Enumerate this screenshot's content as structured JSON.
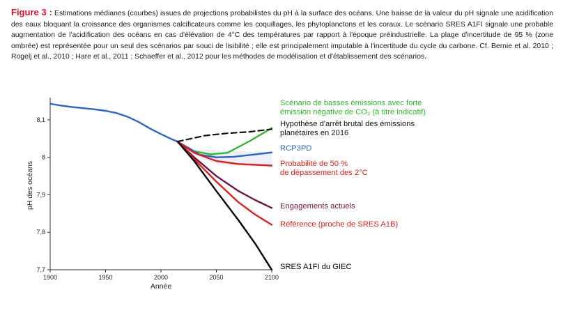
{
  "caption": {
    "label": "Figure 3 :",
    "text": "Estimations médianes (courbes) issues de projections probabilistes du pH à la surface des océans. Une baisse de la valeur du pH signale une acidification des eaux bloquant la croissance des organismes calcificateurs comme les coquillages, les phytoplanctons et les coraux. Le scénario SRES A1FI signale une probable augmentation de l'acidification des océans en cas d'élévation de 4°C des températures par rapport à l'époque préindustrielle. La plage d'incertitude de 95 % (zone ombrée) est représentée pour un seul des scénarios par souci de lisibilité ; elle est principalement imputable à l'incertitude du cycle du carbone. Cf. Bernie et al. 2010 ; Rogelj et al., 2010 ; Hare et al., 2011 ; Schaeffer et al., 2012 pour les méthodes de modélisation et d'établissement des scénarios."
  },
  "chart_data": {
    "type": "line",
    "xlabel": "Année",
    "ylabel": "pH des océans",
    "xlim": [
      1900,
      2100
    ],
    "ylim": [
      7.7,
      8.15
    ],
    "xticks": [
      "1900",
      "1950",
      "2000",
      "2050",
      "2100"
    ],
    "yticks": [
      "7,7",
      "7,8",
      "7,9",
      "8",
      "8,1"
    ],
    "grid": false,
    "legend_placement": "right, at line ends",
    "historical": {
      "color": "#2a63c9",
      "x": [
        1900,
        1910,
        1920,
        1930,
        1940,
        1950,
        1960,
        1970,
        1980,
        1990,
        2000,
        2010,
        2015
      ],
      "y": [
        8.143,
        8.138,
        8.134,
        8.131,
        8.128,
        8.124,
        8.118,
        8.108,
        8.094,
        8.077,
        8.062,
        8.048,
        8.042
      ]
    },
    "uncertainty_band": {
      "color": "#eef0f8",
      "x": [
        2015,
        2030,
        2050,
        2070,
        2100
      ],
      "upper": [
        8.042,
        8.022,
        8.018,
        8.016,
        8.014
      ],
      "lower": [
        8.042,
        8.003,
        7.982,
        7.978,
        7.972
      ]
    },
    "series": [
      {
        "name": "Scénario de basses émissions avec forte émission négative de CO₂ (à titre indicatif)",
        "color": "#2db82d",
        "dashed": false,
        "x": [
          2015,
          2030,
          2045,
          2060,
          2080,
          2100
        ],
        "y": [
          8.042,
          8.016,
          8.008,
          8.012,
          8.043,
          8.078
        ]
      },
      {
        "name": "Hypothèse d'arrêt brutal des émissions planétaires en 2016",
        "color": "#111111",
        "dashed": true,
        "x": [
          2015,
          2040,
          2060,
          2080,
          2100
        ],
        "y": [
          8.042,
          8.058,
          8.064,
          8.068,
          8.075
        ]
      },
      {
        "name": "RCP3PD",
        "color": "#2a63c9",
        "dashed": false,
        "x": [
          2015,
          2035,
          2050,
          2065,
          2080,
          2100
        ],
        "y": [
          8.042,
          8.007,
          8.0,
          8.001,
          8.006,
          8.013
        ]
      },
      {
        "name": "Probabilité de 50 % de dépassement des 2°C",
        "color": "#e0201a",
        "dashed": false,
        "x": [
          2015,
          2030,
          2050,
          2070,
          2100
        ],
        "y": [
          8.042,
          8.012,
          7.99,
          7.982,
          7.978
        ]
      },
      {
        "name": "Engagements actuels",
        "color": "#6e1440",
        "dashed": false,
        "x": [
          2015,
          2030,
          2050,
          2070,
          2085,
          2100
        ],
        "y": [
          8.042,
          8.0,
          7.95,
          7.91,
          7.886,
          7.865
        ]
      },
      {
        "name": "Référence (proche de SRES A1B)",
        "color": "#e0201a",
        "dashed": false,
        "x": [
          2015,
          2030,
          2050,
          2070,
          2085,
          2100
        ],
        "y": [
          8.042,
          7.995,
          7.935,
          7.88,
          7.847,
          7.82
        ]
      },
      {
        "name": "SRES A1FI du GIEC",
        "color": "#000000",
        "dashed": false,
        "x": [
          2015,
          2030,
          2050,
          2070,
          2085,
          2100
        ],
        "y": [
          8.042,
          7.99,
          7.91,
          7.832,
          7.77,
          7.7
        ]
      }
    ],
    "labels": [
      {
        "lines": [
          "Scénario de basses émissions avec forte",
          "émission négative de CO₂ (à titre indicatif)"
        ],
        "color": "#2db82d"
      },
      {
        "lines": [
          "Hypothèse d'arrêt brutal des émissions",
          "planétaires en 2016"
        ],
        "color": "#111111"
      },
      {
        "lines": [
          "RCP3PD"
        ],
        "color": "#2a63c9"
      },
      {
        "lines": [
          "Probabilité de 50 %",
          "de dépassement des 2°C"
        ],
        "color": "#e0201a"
      },
      {
        "lines": [
          "Engagements actuels"
        ],
        "color": "#6e1440"
      },
      {
        "lines": [
          "Référence (proche de SRES A1B)"
        ],
        "color": "#e0201a"
      },
      {
        "lines": [
          "SRES A1FI du GIEC"
        ],
        "color": "#000000"
      }
    ]
  }
}
